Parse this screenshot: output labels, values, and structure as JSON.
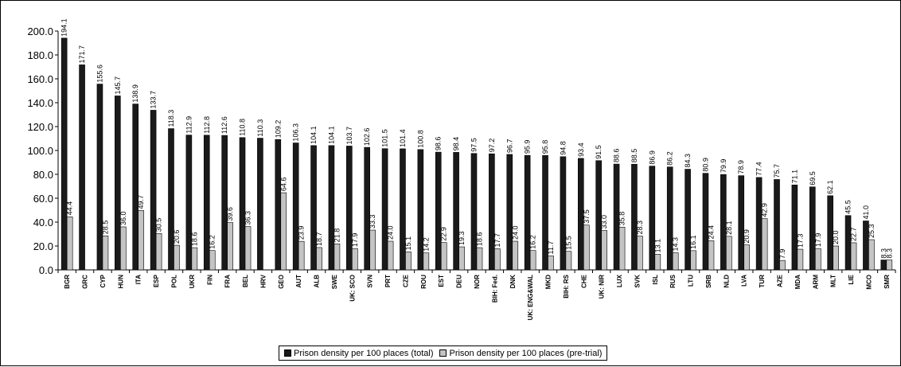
{
  "chart_data": {
    "type": "bar",
    "categories": [
      "BGR",
      "GRC",
      "CYP",
      "HUN",
      "ITA",
      "ESP",
      "POL",
      "UKR",
      "FIN",
      "FRA",
      "BEL",
      "HRV",
      "GEO",
      "AUT",
      "ALB",
      "SWE",
      "UK: SCO",
      "SVN",
      "PRT",
      "CZE",
      "ROU",
      "EST",
      "DEU",
      "NOR",
      "BIH: Fed.",
      "DNK",
      "UK: ENG&WAL",
      "MKD",
      "BIH: RS",
      "CHE",
      "UK: NIR",
      "LUX",
      "SVK",
      "ISL",
      "RUS",
      "LTU",
      "SRB",
      "NLD",
      "LVA",
      "TUR",
      "AZE",
      "MDA",
      "ARM",
      "MLT",
      "LIE",
      "MCO",
      "SMR"
    ],
    "series": [
      {
        "name": "Prison density per 100 places (total)",
        "color": "#1a1a1a",
        "values": [
          194.1,
          171.7,
          155.6,
          145.7,
          138.9,
          133.7,
          118.3,
          112.9,
          112.8,
          112.6,
          110.8,
          110.3,
          109.2,
          106.3,
          104.1,
          104.1,
          103.7,
          102.6,
          101.5,
          101.4,
          100.8,
          98.6,
          98.4,
          97.5,
          97.2,
          96.7,
          95.9,
          95.8,
          94.8,
          93.4,
          91.5,
          88.6,
          88.5,
          86.9,
          86.2,
          84.3,
          80.9,
          79.9,
          78.9,
          77.4,
          75.7,
          71.1,
          69.5,
          62.1,
          45.5,
          41.0,
          8.3
        ]
      },
      {
        "name": "Prison density per 100 places (pre-trial)",
        "color": "#c4c4c4",
        "values": [
          44.4,
          null,
          28.5,
          36.0,
          49.7,
          30.5,
          20.6,
          18.6,
          16.2,
          39.6,
          36.3,
          null,
          64.6,
          23.9,
          18.7,
          21.8,
          17.9,
          33.3,
          24.0,
          15.1,
          14.2,
          22.9,
          19.3,
          18.6,
          17.7,
          24.0,
          16.2,
          11.7,
          15.5,
          37.5,
          33.0,
          35.8,
          28.3,
          13.1,
          14.3,
          16.1,
          24.4,
          28.1,
          20.9,
          42.9,
          7.9,
          17.3,
          17.9,
          20.0,
          22.7,
          25.3,
          8.3
        ]
      }
    ],
    "y_ticks": [
      "0.0",
      "20.0",
      "40.0",
      "60.0",
      "80.0",
      "100.0",
      "120.0",
      "140.0",
      "160.0",
      "180.0",
      "200.0"
    ],
    "ylim": [
      0,
      200
    ],
    "grid": false,
    "legend_position": "bottom",
    "title": "",
    "xlabel": "",
    "ylabel": ""
  },
  "legend": {
    "total": "Prison density per 100 places (total)",
    "pretrial": "Prison density per 100 places (pre-trial)"
  }
}
